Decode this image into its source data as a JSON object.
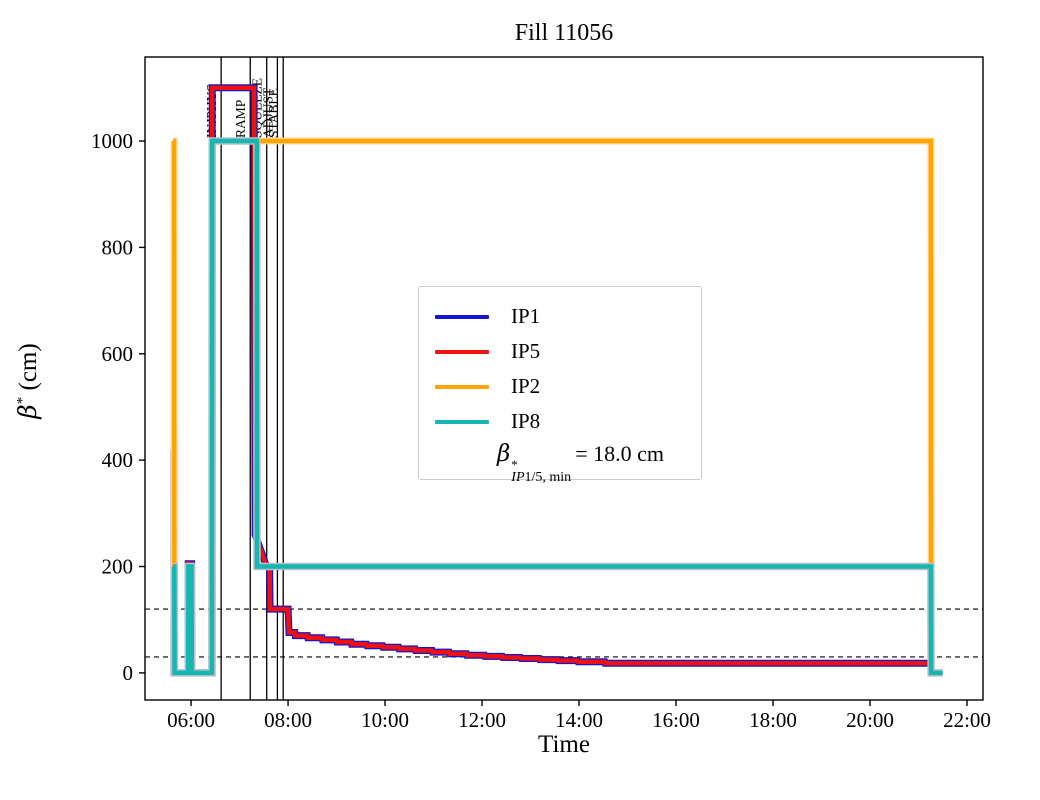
{
  "figure": {
    "title": "Fill 11056",
    "xlabel": "Time",
    "ylabel_beta": "β",
    "ylabel_sup": "*",
    "ylabel_rest": " (cm)"
  },
  "legend": {
    "annotation": {
      "beta": "β",
      "sup": "*",
      "sub_italic": "IP",
      "sub_rest": "1/5, min",
      "rest": "= 18.0 cm"
    }
  },
  "chart_data": {
    "type": "line",
    "title": "Fill 11056",
    "xlabel": "Time",
    "ylabel": "β* (cm)",
    "x_axis_is_time_of_day_hours": true,
    "xlim_hours": [
      5.05,
      22.33
    ],
    "ylim": [
      -51,
      1158
    ],
    "grid": false,
    "legend_position": "center-left-inside",
    "xticks": [
      {
        "t": 6,
        "label": "06:00"
      },
      {
        "t": 8,
        "label": "08:00"
      },
      {
        "t": 10,
        "label": "10:00"
      },
      {
        "t": 12,
        "label": "12:00"
      },
      {
        "t": 14,
        "label": "14:00"
      },
      {
        "t": 16,
        "label": "16:00"
      },
      {
        "t": 18,
        "label": "18:00"
      },
      {
        "t": 20,
        "label": "20:00"
      },
      {
        "t": 22,
        "label": "22:00"
      }
    ],
    "yticks": [
      {
        "v": 0,
        "label": "0"
      },
      {
        "v": 200,
        "label": "200"
      },
      {
        "v": 400,
        "label": "400"
      },
      {
        "v": 600,
        "label": "600"
      },
      {
        "v": 800,
        "label": "800"
      },
      {
        "v": 1000,
        "label": "1000"
      }
    ],
    "dashed_hlines_cm": [
      120,
      30
    ],
    "beta_min_ip15_cm": 18.0,
    "phase_lines": [
      {
        "t": 6.62,
        "label": "INJPHYS"
      },
      {
        "t": 7.22,
        "label": "RAMP"
      },
      {
        "t": 7.56,
        "label": "SQUEEZE"
      },
      {
        "t": 7.78,
        "label": "ADJUST"
      },
      {
        "t": 7.9,
        "label": "STABLE"
      }
    ],
    "series": [
      {
        "name": "IP1",
        "color": "#1414d2",
        "points": [
          [
            5.63,
            420
          ],
          [
            5.65,
            420
          ],
          [
            5.65,
            0
          ],
          [
            5.94,
            0
          ],
          [
            5.94,
            205
          ],
          [
            6.01,
            205
          ],
          [
            6.01,
            0
          ],
          [
            6.435,
            0
          ],
          [
            6.435,
            1100
          ],
          [
            7.3,
            1100
          ],
          [
            7.32,
            260
          ],
          [
            7.5,
            215
          ],
          [
            7.555,
            200
          ],
          [
            7.62,
            200
          ],
          [
            7.63,
            120
          ],
          [
            8.0,
            120
          ],
          [
            8.02,
            76
          ],
          [
            8.14,
            76
          ],
          [
            8.15,
            70
          ],
          [
            8.4,
            70
          ],
          [
            8.41,
            66
          ],
          [
            8.7,
            66
          ],
          [
            8.71,
            62
          ],
          [
            9.0,
            62
          ],
          [
            9.01,
            58
          ],
          [
            9.3,
            58
          ],
          [
            9.31,
            54
          ],
          [
            9.62,
            54
          ],
          [
            9.63,
            51
          ],
          [
            9.95,
            51
          ],
          [
            9.96,
            48
          ],
          [
            10.28,
            48
          ],
          [
            10.29,
            45
          ],
          [
            10.62,
            45
          ],
          [
            10.63,
            42
          ],
          [
            10.97,
            42
          ],
          [
            10.98,
            39
          ],
          [
            11.32,
            39
          ],
          [
            11.33,
            36
          ],
          [
            11.68,
            36
          ],
          [
            11.69,
            33
          ],
          [
            12.05,
            33
          ],
          [
            12.06,
            31
          ],
          [
            12.42,
            31
          ],
          [
            12.43,
            29
          ],
          [
            12.8,
            29
          ],
          [
            12.81,
            27
          ],
          [
            13.18,
            27
          ],
          [
            13.19,
            25
          ],
          [
            13.56,
            25
          ],
          [
            13.57,
            23
          ],
          [
            13.97,
            23
          ],
          [
            13.98,
            21
          ],
          [
            14.53,
            21
          ],
          [
            14.54,
            18
          ],
          [
            21.26,
            18
          ]
        ]
      },
      {
        "name": "IP5",
        "color": "#ee1111",
        "points": [
          [
            5.63,
            420
          ],
          [
            5.65,
            420
          ],
          [
            5.65,
            0
          ],
          [
            5.94,
            0
          ],
          [
            5.94,
            205
          ],
          [
            6.01,
            205
          ],
          [
            6.01,
            0
          ],
          [
            6.435,
            0
          ],
          [
            6.435,
            1100
          ],
          [
            7.3,
            1100
          ],
          [
            7.32,
            260
          ],
          [
            7.5,
            215
          ],
          [
            7.555,
            200
          ],
          [
            7.62,
            200
          ],
          [
            7.63,
            120
          ],
          [
            8.0,
            120
          ],
          [
            8.02,
            76
          ],
          [
            8.14,
            76
          ],
          [
            8.15,
            70
          ],
          [
            8.4,
            70
          ],
          [
            8.41,
            66
          ],
          [
            8.7,
            66
          ],
          [
            8.71,
            62
          ],
          [
            9.0,
            62
          ],
          [
            9.01,
            58
          ],
          [
            9.3,
            58
          ],
          [
            9.31,
            54
          ],
          [
            9.62,
            54
          ],
          [
            9.63,
            51
          ],
          [
            9.95,
            51
          ],
          [
            9.96,
            48
          ],
          [
            10.28,
            48
          ],
          [
            10.29,
            45
          ],
          [
            10.62,
            45
          ],
          [
            10.63,
            42
          ],
          [
            10.97,
            42
          ],
          [
            10.98,
            39
          ],
          [
            11.32,
            39
          ],
          [
            11.33,
            36
          ],
          [
            11.68,
            36
          ],
          [
            11.69,
            33
          ],
          [
            12.05,
            33
          ],
          [
            12.06,
            31
          ],
          [
            12.42,
            31
          ],
          [
            12.43,
            29
          ],
          [
            12.8,
            29
          ],
          [
            12.81,
            27
          ],
          [
            13.18,
            27
          ],
          [
            13.19,
            25
          ],
          [
            13.56,
            25
          ],
          [
            13.57,
            23
          ],
          [
            13.97,
            23
          ],
          [
            13.98,
            21
          ],
          [
            14.53,
            21
          ],
          [
            14.54,
            18
          ],
          [
            21.26,
            18
          ]
        ]
      },
      {
        "name": "IP2",
        "color": "#ffa500",
        "points": [
          [
            5.63,
            1000
          ],
          [
            5.65,
            1000
          ],
          [
            5.655,
            0
          ],
          [
            6.44,
            0
          ],
          [
            6.445,
            1000
          ],
          [
            21.255,
            1000
          ],
          [
            21.26,
            0
          ],
          [
            21.32,
            0
          ]
        ]
      },
      {
        "name": "IP8",
        "color": "#15b7b0",
        "points": [
          [
            5.63,
            200
          ],
          [
            5.655,
            200
          ],
          [
            5.66,
            0
          ],
          [
            5.94,
            0
          ],
          [
            5.945,
            200
          ],
          [
            6.01,
            200
          ],
          [
            6.015,
            0
          ],
          [
            6.43,
            0
          ],
          [
            6.435,
            1000
          ],
          [
            7.355,
            1000
          ],
          [
            7.36,
            200
          ],
          [
            21.255,
            200
          ],
          [
            21.26,
            0
          ],
          [
            21.5,
            0
          ]
        ]
      }
    ]
  }
}
